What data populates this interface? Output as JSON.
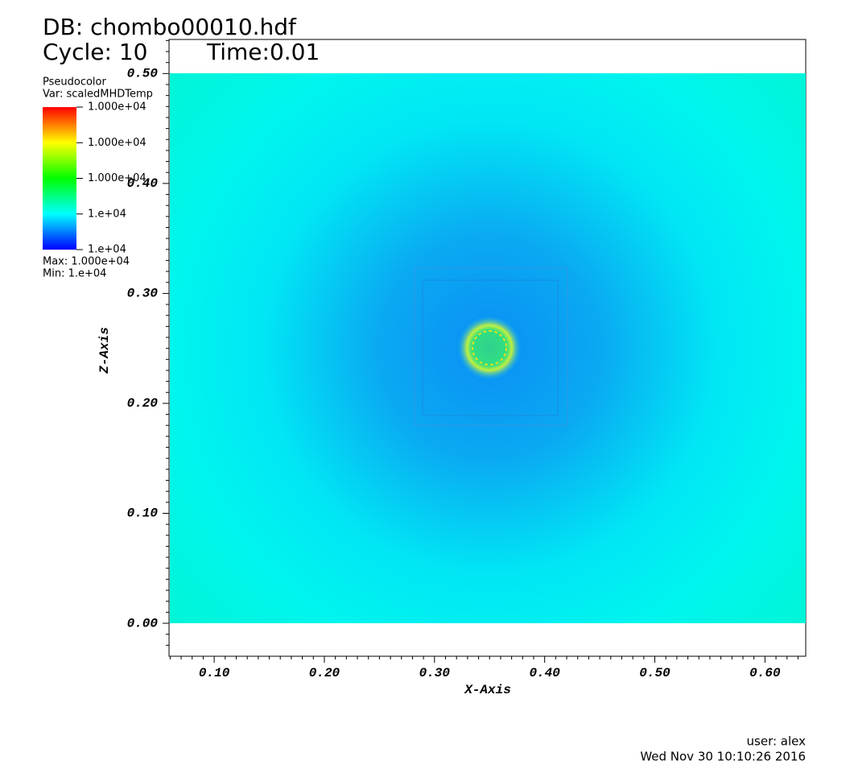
{
  "chart_data": {
    "type": "pseudocolor",
    "db": "DB: chombo00010.hdf",
    "cycle": "Cycle: 10",
    "time": "Time:0.01",
    "xlabel": "X-Axis",
    "ylabel": "Z-Axis",
    "xlim": [
      0.059,
      0.637
    ],
    "xticks": [
      {
        "value": 0.1,
        "label": "0.10"
      },
      {
        "value": 0.2,
        "label": "0.20"
      },
      {
        "value": 0.3,
        "label": "0.30"
      },
      {
        "value": 0.4,
        "label": "0.40"
      },
      {
        "value": 0.5,
        "label": "0.50"
      },
      {
        "value": 0.6,
        "label": "0.60"
      }
    ],
    "ylim": [
      -0.03,
      0.531
    ],
    "yticks": [
      {
        "value": 0,
        "label": "0.00"
      },
      {
        "value": 0.1,
        "label": "0.10"
      },
      {
        "value": 0.2,
        "label": "0.20"
      },
      {
        "value": 0.3,
        "label": "0.30"
      },
      {
        "value": 0.4,
        "label": "0.40"
      },
      {
        "value": 0.5,
        "label": "0.50"
      }
    ],
    "legend": {
      "plot": "Pseudocolor",
      "var": "Var: scaledMHDTemp",
      "labels": [
        "1.000e+04",
        "1.000e+04",
        "1.000e+04",
        "1.e+04",
        "1.e+04"
      ],
      "max": "Max:  1.000e+04",
      "min": "Min:  1.e+04"
    },
    "user": "user: alex",
    "date": "Wed Nov 30 10:10:26 2016"
  }
}
